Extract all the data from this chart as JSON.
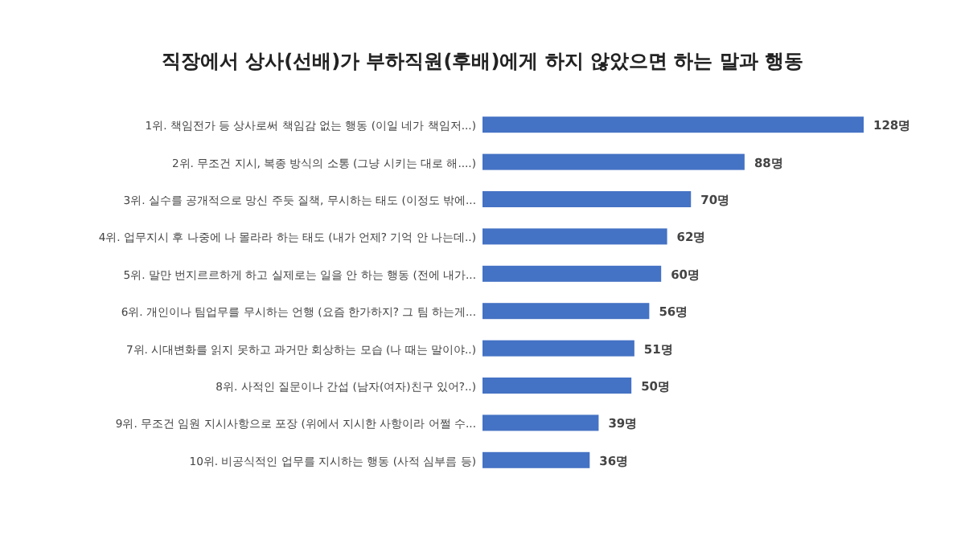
{
  "chart_data": {
    "type": "bar",
    "orientation": "horizontal",
    "title": "직장에서 상사(선배)가 부하직원(후배)에게 하지 않았으면 하는 말과 행동",
    "categories": [
      "1위. 책임전가 등 상사로써 책임감 없는 행동 (이일 네가 책임저...)",
      "2위. 무조건 지시, 복종 방식의 소통 (그냥 시키는 대로 해....)",
      "3위. 실수를 공개적으로 망신 주듯 질책, 무시하는 태도 (이정도 밖에...",
      "4위. 업무지시 후 나중에 나 몰라라 하는 태도 (내가 언제? 기억 안 나는데..)",
      "5위. 말만 번지르르하게 하고 실제로는 일을 안 하는 행동 (전에 내가...",
      "6위. 개인이나 팀업무를 무시하는 언행 (요즘 한가하지? 그 팀 하는게...",
      "7위. 시대변화를 읽지 못하고 과거만 회상하는 모습 (나 때는 말이야..)",
      "8위. 사적인 질문이나 간섭 (남자(여자)친구 있어?..)",
      "9위. 무조건 임원 지시사항으로 포장 (위에서 지시한 사항이라 어쩔 수...",
      "10위. 비공식적인 업무를 지시하는 행동 (사적 심부름 등)"
    ],
    "values": [
      128,
      88,
      70,
      62,
      60,
      56,
      51,
      50,
      39,
      36
    ],
    "value_labels": [
      "128명",
      "88명",
      "70명",
      "62명",
      "60명",
      "56명",
      "51명",
      "50명",
      "39명",
      "36명"
    ],
    "color": "#4472c4"
  }
}
